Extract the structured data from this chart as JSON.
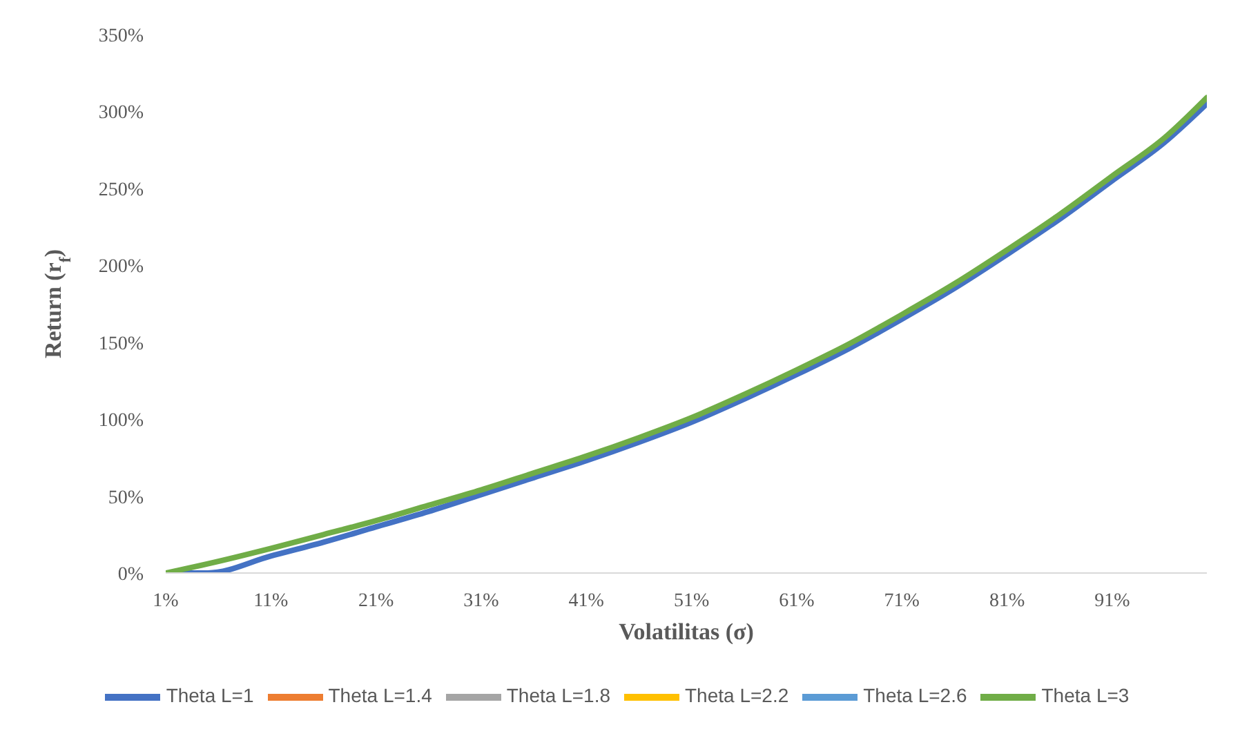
{
  "chart_data": {
    "type": "line",
    "xlabel": "Volatilitas (σ)",
    "ylabel": "Return (r$_{f}$)",
    "x": [
      1,
      5,
      11,
      16,
      21,
      26,
      31,
      36,
      41,
      46,
      51,
      56,
      61,
      66,
      71,
      76,
      81,
      86,
      91,
      96,
      100
    ],
    "xlim": [
      1,
      100
    ],
    "xticks": [
      {
        "value": 1,
        "label": "1%"
      },
      {
        "value": 11,
        "label": "11%"
      },
      {
        "value": 21,
        "label": "21%"
      },
      {
        "value": 31,
        "label": "31%"
      },
      {
        "value": 41,
        "label": "41%"
      },
      {
        "value": 51,
        "label": "51%"
      },
      {
        "value": 61,
        "label": "61%"
      },
      {
        "value": 71,
        "label": "71%"
      },
      {
        "value": 81,
        "label": "81%"
      },
      {
        "value": 91,
        "label": "91%"
      }
    ],
    "ylim": [
      0,
      350
    ],
    "yticks": [
      {
        "value": 0,
        "label": "0%"
      },
      {
        "value": 50,
        "label": "50%"
      },
      {
        "value": 100,
        "label": "100%"
      },
      {
        "value": 150,
        "label": "150%"
      },
      {
        "value": 200,
        "label": "200%"
      },
      {
        "value": 250,
        "label": "250%"
      },
      {
        "value": 300,
        "label": "300%"
      },
      {
        "value": 350,
        "label": "350%"
      }
    ],
    "series": [
      {
        "name": "Theta L=1",
        "color": "#4472c4",
        "values": [
          0,
          0,
          11,
          20,
          30,
          40,
          51,
          62,
          73,
          85,
          98,
          113,
          129,
          146,
          165,
          185,
          207,
          230,
          255,
          280,
          305
        ]
      },
      {
        "name": "Theta L=1.4",
        "color": "#ed7d31",
        "values": [
          null,
          null,
          null,
          null,
          null,
          null,
          null,
          null,
          null,
          null,
          null,
          null,
          null,
          null,
          null,
          null,
          null,
          null,
          null,
          null,
          null
        ]
      },
      {
        "name": "Theta L=1.8",
        "color": "#a5a5a5",
        "values": [
          null,
          null,
          null,
          null,
          null,
          null,
          null,
          null,
          null,
          null,
          null,
          null,
          null,
          null,
          null,
          null,
          null,
          null,
          null,
          null,
          null
        ]
      },
      {
        "name": "Theta L=2.2",
        "color": "#ffc000",
        "values": [
          null,
          null,
          null,
          null,
          null,
          null,
          null,
          null,
          null,
          null,
          null,
          null,
          null,
          null,
          null,
          null,
          null,
          null,
          null,
          null,
          null
        ]
      },
      {
        "name": "Theta L=2.6",
        "color": "#5b9bd5",
        "values": [
          null,
          null,
          null,
          null,
          null,
          null,
          null,
          null,
          null,
          null,
          null,
          null,
          null,
          null,
          null,
          null,
          null,
          null,
          null,
          null,
          null
        ]
      },
      {
        "name": "Theta L=3",
        "color": "#70ad47",
        "values": [
          0,
          6,
          16,
          25,
          34,
          44,
          54,
          65,
          76,
          88,
          101,
          116,
          132,
          149,
          168,
          188,
          210,
          233,
          258,
          283,
          309
        ]
      }
    ],
    "legend": "bottom",
    "marker": "none",
    "line_style": "solid"
  }
}
